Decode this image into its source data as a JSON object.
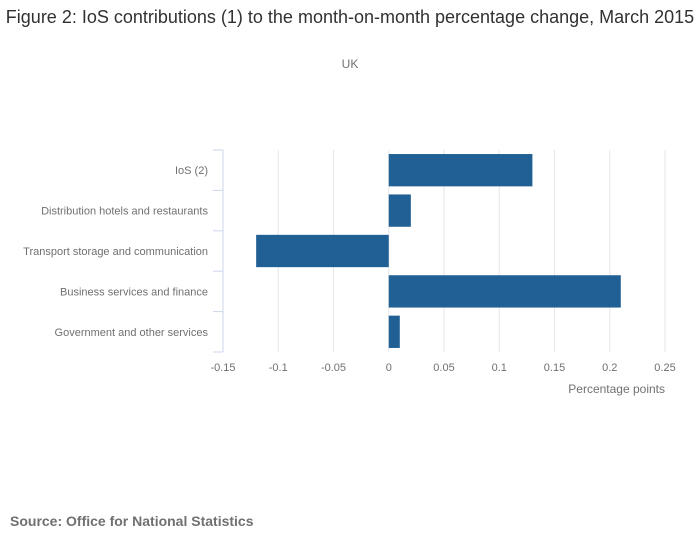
{
  "header": {
    "title": "Figure 2: IoS contributions (1) to the month-on-month percentage change, March 2015",
    "subtitle": "UK"
  },
  "footer": {
    "source": "Source: Office for National Statistics"
  },
  "colors": {
    "bar": "#206095",
    "grid": "#e6e6e6",
    "axis": "#ccd6eb"
  },
  "chart_data": {
    "type": "bar",
    "orientation": "horizontal",
    "title": "Figure 2: IoS contributions (1) to the month-on-month percentage change, March 2015",
    "subtitle": "UK",
    "xlabel": "Percentage points",
    "ylabel": "",
    "xlim": [
      -0.15,
      0.25
    ],
    "xticks": [
      -0.15,
      -0.1,
      -0.05,
      0,
      0.05,
      0.1,
      0.15,
      0.2,
      0.25
    ],
    "xtick_labels": [
      "-0.15",
      "-0.1",
      "-0.05",
      "0",
      "0.05",
      "0.1",
      "0.15",
      "0.2",
      "0.25"
    ],
    "categories": [
      "IoS (2)",
      "Distribution hotels and restaurants",
      "Transport storage and communication",
      "Business services and finance",
      "Government and other services"
    ],
    "values": [
      0.13,
      0.02,
      -0.12,
      0.21,
      0.01
    ],
    "grid": true,
    "legend": "none"
  }
}
